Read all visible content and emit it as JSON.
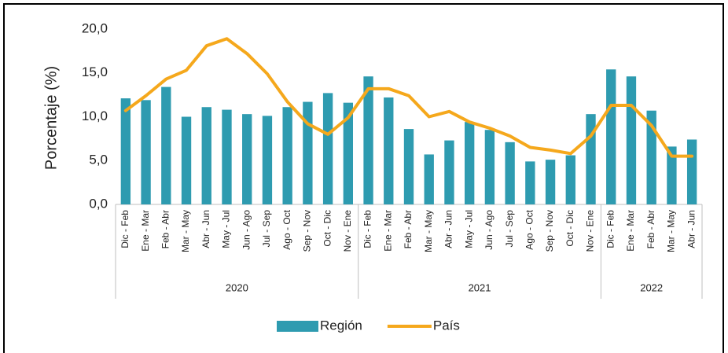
{
  "chart_data": {
    "type": "bar_line",
    "y_axis_label": "Porcentaje (%)",
    "category_groups": [
      {
        "label": "2020",
        "categories": [
          "Dic - Feb",
          "Ene - Mar",
          "Feb - Abr",
          "Mar - May",
          "Abr - Jun",
          "May - Jul",
          "Jun - Ago",
          "Jul - Sep",
          "Ago - Oct",
          "Sep - Nov",
          "Oct - Dic",
          "Nov - Ene"
        ]
      },
      {
        "label": "2021",
        "categories": [
          "Dic - Feb",
          "Ene - Mar",
          "Feb - Abr",
          "Mar - May",
          "Abr - Jun",
          "May - Jul",
          "Jun - Ago",
          "Jul - Sep",
          "Ago - Oct",
          "Sep - Nov",
          "Oct - Dic",
          "Nov - Ene"
        ]
      },
      {
        "label": "2022",
        "categories": [
          "Dic - Feb",
          "Ene - Mar",
          "Feb - Abr",
          "Mar - May",
          "Abr - Jun"
        ]
      }
    ],
    "series": [
      {
        "name": "Región",
        "kind": "bar",
        "color": "#2e9bb0",
        "values": [
          12.1,
          11.9,
          13.4,
          10.0,
          11.1,
          10.8,
          10.3,
          10.1,
          11.1,
          11.7,
          12.7,
          11.6,
          14.6,
          12.2,
          8.6,
          5.7,
          7.3,
          9.4,
          8.5,
          7.1,
          4.9,
          5.1,
          5.6,
          10.3,
          15.4,
          14.6,
          10.7,
          6.6,
          7.4
        ]
      },
      {
        "name": "País",
        "kind": "line",
        "color": "#f5a81c",
        "values": [
          10.7,
          12.4,
          14.3,
          15.3,
          18.1,
          18.9,
          17.2,
          14.9,
          11.7,
          9.2,
          8.0,
          9.9,
          13.2,
          13.2,
          12.4,
          10.0,
          10.6,
          9.4,
          8.7,
          7.8,
          6.5,
          6.2,
          5.8,
          7.8,
          11.3,
          11.3,
          9.0,
          5.5,
          5.5
        ]
      }
    ],
    "ylim": [
      0,
      20
    ],
    "yticks": [
      {
        "value": 0,
        "label": "0,0"
      },
      {
        "value": 5,
        "label": "5,0"
      },
      {
        "value": 10,
        "label": "10,0"
      },
      {
        "value": 15,
        "label": "15,0"
      },
      {
        "value": 20,
        "label": "20,0"
      }
    ],
    "legend": "bottom"
  }
}
